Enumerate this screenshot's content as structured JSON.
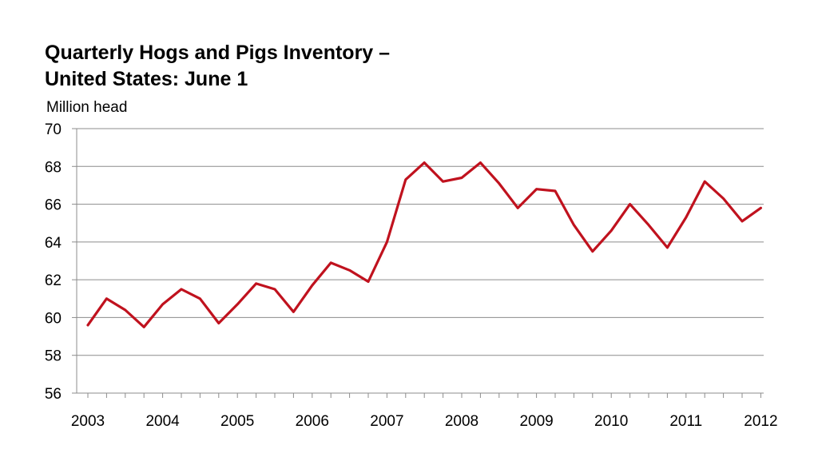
{
  "chart_data": {
    "type": "line",
    "title_line1": "Quarterly Hogs and Pigs Inventory –",
    "title_line2": "United States: June 1",
    "ylabel": "Million head",
    "xlabel": "",
    "ylim": [
      56,
      70
    ],
    "yticks": [
      56,
      58,
      60,
      62,
      64,
      66,
      68,
      70
    ],
    "xticks": [
      "2003",
      "2004",
      "2005",
      "2006",
      "2007",
      "2008",
      "2009",
      "2010",
      "2011",
      "2012"
    ],
    "grid": true,
    "line_color": "#c0121e",
    "grid_color": "#8c8c8c",
    "series": [
      {
        "values": [
          59.6,
          61.0,
          60.4,
          59.5,
          60.7,
          61.5,
          61.0,
          59.7,
          60.7,
          61.8,
          61.5,
          60.3,
          61.7,
          62.9,
          62.5,
          61.9,
          64.0,
          67.3,
          68.2,
          67.2,
          67.4,
          68.2,
          67.1,
          65.8,
          66.8,
          66.7,
          64.9,
          63.5,
          64.6,
          66.0,
          64.9,
          63.7,
          65.3,
          67.2,
          66.3,
          65.1,
          65.8
        ]
      }
    ]
  }
}
